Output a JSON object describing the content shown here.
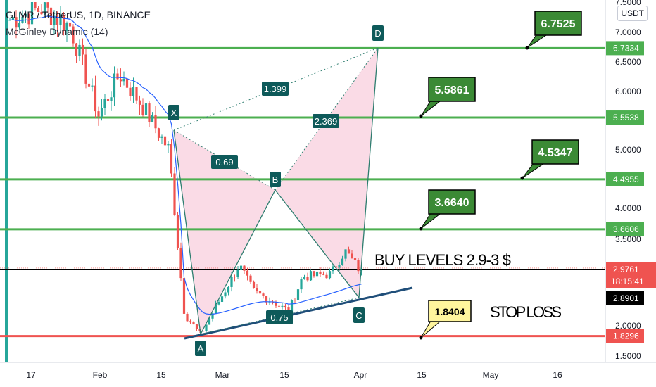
{
  "header": {
    "symbol": "GLMR / TetherUS, 1D, BINANCE",
    "indicator": "McGinley Dynamic (14)",
    "unit": "USDT"
  },
  "chart_data": {
    "type": "candlestick",
    "y_ticks": [
      "7.5000",
      "7.0000",
      "6.5000",
      "6.0000",
      "5.0000",
      "4.0000",
      "3.5000",
      "2.0000",
      "1.5000"
    ],
    "x_ticks": [
      "17",
      "Feb",
      "15",
      "Mar",
      "15",
      "Apr",
      "15",
      "May",
      "16"
    ],
    "price_lines": [
      {
        "value": "6.7334",
        "color": "#4caf50",
        "tag": "6.7525"
      },
      {
        "value": "5.5538",
        "color": "#4caf50",
        "tag": "5.5861"
      },
      {
        "value": "4.4955",
        "color": "#4caf50",
        "tag": "4.5347"
      },
      {
        "value": "3.6606",
        "color": "#4caf50",
        "tag": "3.6640"
      },
      {
        "value": "1.8296",
        "color": "#ef5350",
        "tag": "1.8404"
      }
    ],
    "current_price": {
      "value": "2.9761",
      "countdown": "18:15:41",
      "color": "#ef5350"
    },
    "support_price": {
      "value": "2.8901"
    },
    "pattern_points": [
      "X",
      "A",
      "B",
      "C",
      "D"
    ],
    "ratios": [
      "1.399",
      "0.69",
      "2.369",
      "0.75"
    ],
    "annotations": {
      "buy": "BUY LEVELS 2.9-3 $",
      "stop": "STOP LOSS"
    },
    "colors": {
      "up": "#26a69a",
      "down": "#ef5350",
      "ma": "#2962ff",
      "pattern_fill": "#f8c8d8",
      "tag_green": "#3b8a35",
      "tag_yellow": "#fff59d",
      "trend": "#1f4e79"
    }
  }
}
